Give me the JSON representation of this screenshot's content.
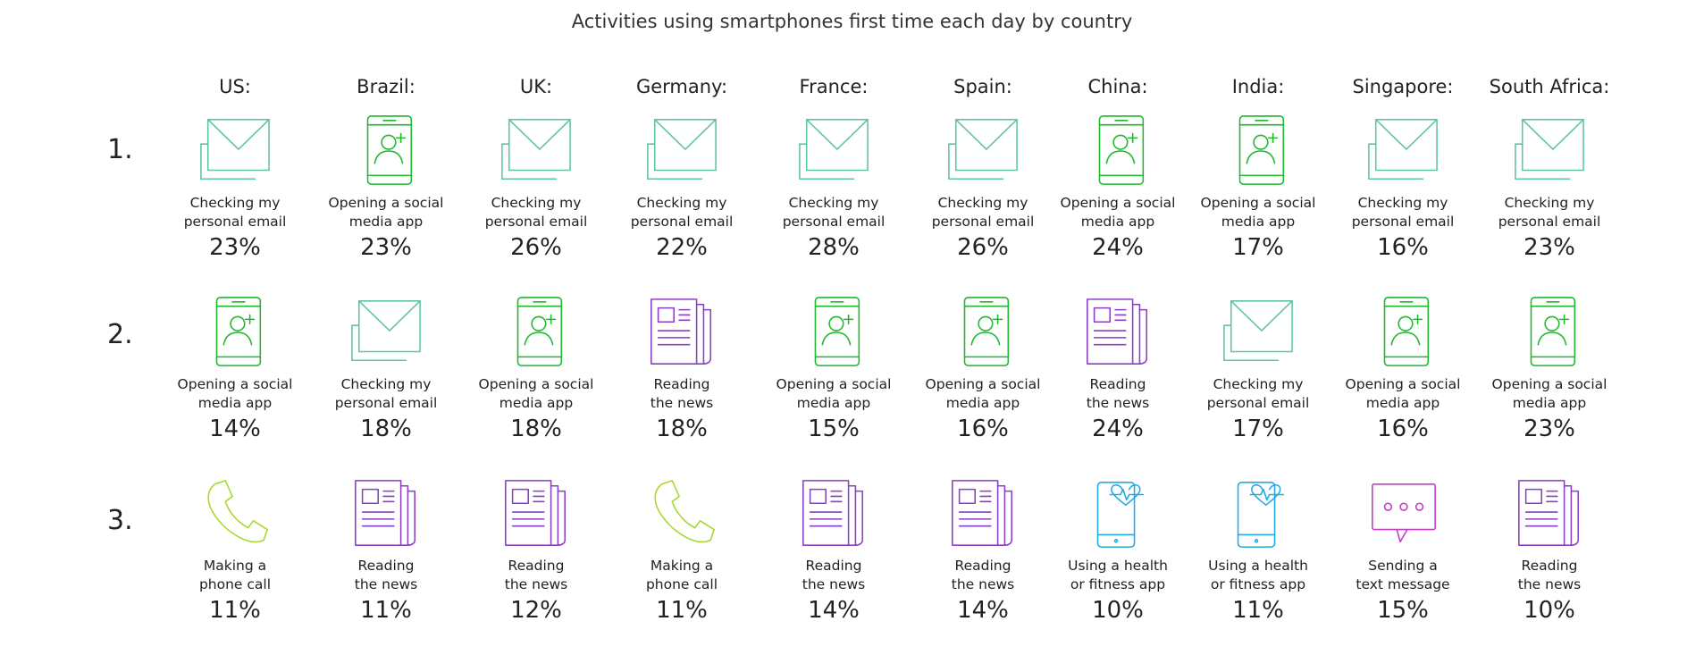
{
  "title": "Activities using smartphones first time each day by country",
  "countries": [
    "US:",
    "Brazil:",
    "UK:",
    "Germany:",
    "France:",
    "Spain:",
    "China:",
    "India:",
    "Singapore:",
    "South Africa:"
  ],
  "ranks": [
    "1.",
    "2.",
    "3."
  ],
  "colors": {
    "email": "#5fc4a6",
    "social": "#1fb82e",
    "news": "#8b3fc4",
    "phone": "#a8d82a",
    "health": "#22a9e6",
    "text": "#c23cc4"
  },
  "activities": {
    "email": "Checking my\npersonal email",
    "social": "Opening a social\nmedia app",
    "news": "Reading\nthe news",
    "phone": "Making a\nphone call",
    "health": "Using a health\nor fitness app",
    "text": "Sending a\ntext message"
  },
  "rows": [
    [
      {
        "icon": "email",
        "pct": "23%"
      },
      {
        "icon": "social",
        "pct": "23%"
      },
      {
        "icon": "email",
        "pct": "26%"
      },
      {
        "icon": "email",
        "pct": "22%"
      },
      {
        "icon": "email",
        "pct": "28%"
      },
      {
        "icon": "email",
        "pct": "26%"
      },
      {
        "icon": "social",
        "pct": "24%"
      },
      {
        "icon": "social",
        "pct": "17%"
      },
      {
        "icon": "email",
        "pct": "16%"
      },
      {
        "icon": "email",
        "pct": "23%"
      }
    ],
    [
      {
        "icon": "social",
        "pct": "14%"
      },
      {
        "icon": "email",
        "pct": "18%"
      },
      {
        "icon": "social",
        "pct": "18%"
      },
      {
        "icon": "news",
        "pct": "18%"
      },
      {
        "icon": "social",
        "pct": "15%"
      },
      {
        "icon": "social",
        "pct": "16%"
      },
      {
        "icon": "news",
        "pct": "24%"
      },
      {
        "icon": "email",
        "pct": "17%"
      },
      {
        "icon": "social",
        "pct": "16%"
      },
      {
        "icon": "social",
        "pct": "23%"
      }
    ],
    [
      {
        "icon": "phone",
        "pct": "11%"
      },
      {
        "icon": "news",
        "pct": "11%"
      },
      {
        "icon": "news",
        "pct": "12%"
      },
      {
        "icon": "phone",
        "pct": "11%"
      },
      {
        "icon": "news",
        "pct": "14%"
      },
      {
        "icon": "news",
        "pct": "14%"
      },
      {
        "icon": "health",
        "pct": "10%"
      },
      {
        "icon": "health",
        "pct": "11%"
      },
      {
        "icon": "text",
        "pct": "15%"
      },
      {
        "icon": "news",
        "pct": "10%"
      }
    ]
  ]
}
